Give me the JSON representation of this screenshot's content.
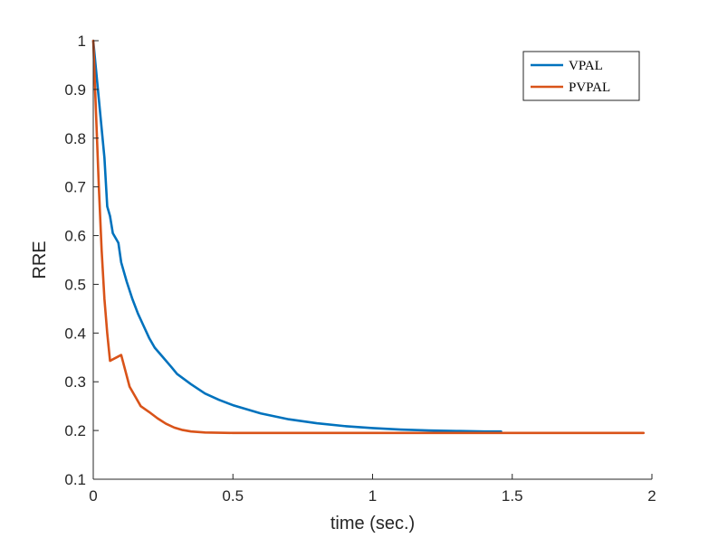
{
  "chart_data": {
    "type": "line",
    "title": "",
    "xlabel": "time (sec.)",
    "ylabel": "RRE",
    "xlim": [
      0,
      2
    ],
    "ylim": [
      0.1,
      1
    ],
    "xticks": [
      0,
      0.5,
      1,
      1.5,
      2
    ],
    "xtick_labels": [
      "0",
      "0.5",
      "1",
      "1.5",
      "2"
    ],
    "yticks": [
      0.1,
      0.2,
      0.3,
      0.4,
      0.5,
      0.6,
      0.7,
      0.8,
      0.9,
      1
    ],
    "ytick_labels": [
      "0.1",
      "0.2",
      "0.3",
      "0.4",
      "0.5",
      "0.6",
      "0.7",
      "0.8",
      "0.9",
      "1"
    ],
    "grid": false,
    "legend_position": "top-right",
    "series": [
      {
        "name": "VPAL",
        "color": "#0072BD",
        "x": [
          0,
          0.01,
          0.02,
          0.03,
          0.04,
          0.05,
          0.06,
          0.07,
          0.08,
          0.09,
          0.1,
          0.12,
          0.14,
          0.16,
          0.18,
          0.2,
          0.22,
          0.25,
          0.28,
          0.3,
          0.35,
          0.4,
          0.45,
          0.5,
          0.6,
          0.7,
          0.8,
          0.9,
          1.0,
          1.1,
          1.2,
          1.3,
          1.4,
          1.46
        ],
        "y": [
          1.0,
          0.94,
          0.88,
          0.82,
          0.76,
          0.66,
          0.64,
          0.605,
          0.595,
          0.585,
          0.545,
          0.505,
          0.47,
          0.44,
          0.415,
          0.39,
          0.37,
          0.35,
          0.33,
          0.316,
          0.295,
          0.276,
          0.263,
          0.252,
          0.235,
          0.223,
          0.215,
          0.209,
          0.205,
          0.202,
          0.2,
          0.199,
          0.198,
          0.198
        ]
      },
      {
        "name": "PVPAL",
        "color": "#D95319",
        "x": [
          0,
          0.01,
          0.02,
          0.03,
          0.04,
          0.05,
          0.06,
          0.08,
          0.1,
          0.13,
          0.15,
          0.17,
          0.2,
          0.23,
          0.26,
          0.29,
          0.32,
          0.35,
          0.4,
          0.5,
          0.6,
          0.8,
          1.0,
          1.5,
          1.97
        ],
        "y": [
          1.0,
          0.85,
          0.7,
          0.57,
          0.47,
          0.4,
          0.343,
          0.349,
          0.355,
          0.29,
          0.27,
          0.25,
          0.238,
          0.225,
          0.214,
          0.206,
          0.201,
          0.198,
          0.196,
          0.195,
          0.195,
          0.195,
          0.195,
          0.195,
          0.195
        ]
      }
    ]
  }
}
